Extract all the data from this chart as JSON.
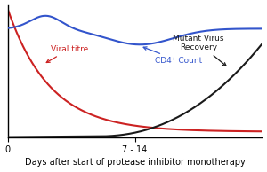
{
  "title": "Days after start of protease inhibitor monotherapy",
  "cd4_label": "CD4⁺ Count",
  "viral_label": "Viral titre",
  "mutant_label": "Mutant Virus\nRecovery",
  "x_tick_label": "7 - 14",
  "x_start_label": "0",
  "cd4_color": "#3355cc",
  "viral_color": "#cc2222",
  "mutant_color": "#1a1a1a",
  "figsize": [
    3.0,
    1.94
  ],
  "dpi": 100,
  "background": "#ffffff"
}
